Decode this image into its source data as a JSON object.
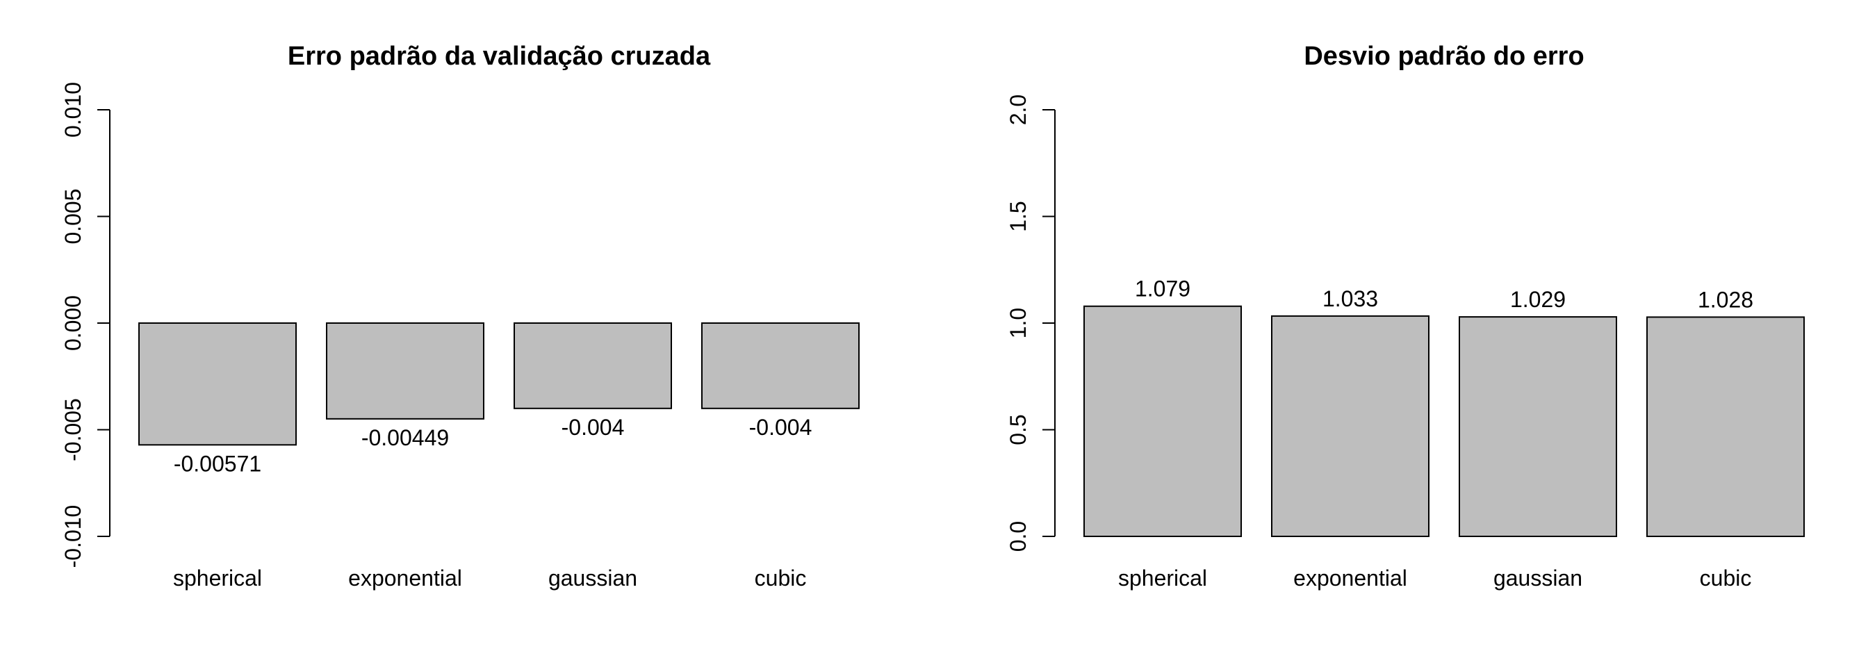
{
  "chart_data": [
    {
      "type": "bar",
      "title": "Erro padrão da validação cruzada",
      "xlabel": "",
      "ylabel": "",
      "categories": [
        "spherical",
        "exponential",
        "gaussian",
        "cubic"
      ],
      "values": [
        -0.00571,
        -0.00449,
        -0.004,
        -0.004
      ],
      "value_labels": [
        "-0.00571",
        "-0.00449",
        "-0.004",
        "-0.004"
      ],
      "ylim": [
        -0.01,
        0.01
      ],
      "yticks": [
        -0.01,
        -0.005,
        0.0,
        0.005,
        0.01
      ],
      "ytick_labels": [
        "-0.010",
        "-0.005",
        "0.000",
        "0.005",
        "0.010"
      ],
      "bar_color": "#bebebe",
      "grid": false,
      "legend": "none"
    },
    {
      "type": "bar",
      "title": "Desvio padrão do erro",
      "xlabel": "",
      "ylabel": "",
      "categories": [
        "spherical",
        "exponential",
        "gaussian",
        "cubic"
      ],
      "values": [
        1.079,
        1.033,
        1.029,
        1.028
      ],
      "value_labels": [
        "1.079",
        "1.033",
        "1.029",
        "1.028"
      ],
      "ylim": [
        0.0,
        2.0
      ],
      "yticks": [
        0.0,
        0.5,
        1.0,
        1.5,
        2.0
      ],
      "ytick_labels": [
        "0.0",
        "0.5",
        "1.0",
        "1.5",
        "2.0"
      ],
      "bar_color": "#bebebe",
      "grid": false,
      "legend": "none"
    }
  ]
}
